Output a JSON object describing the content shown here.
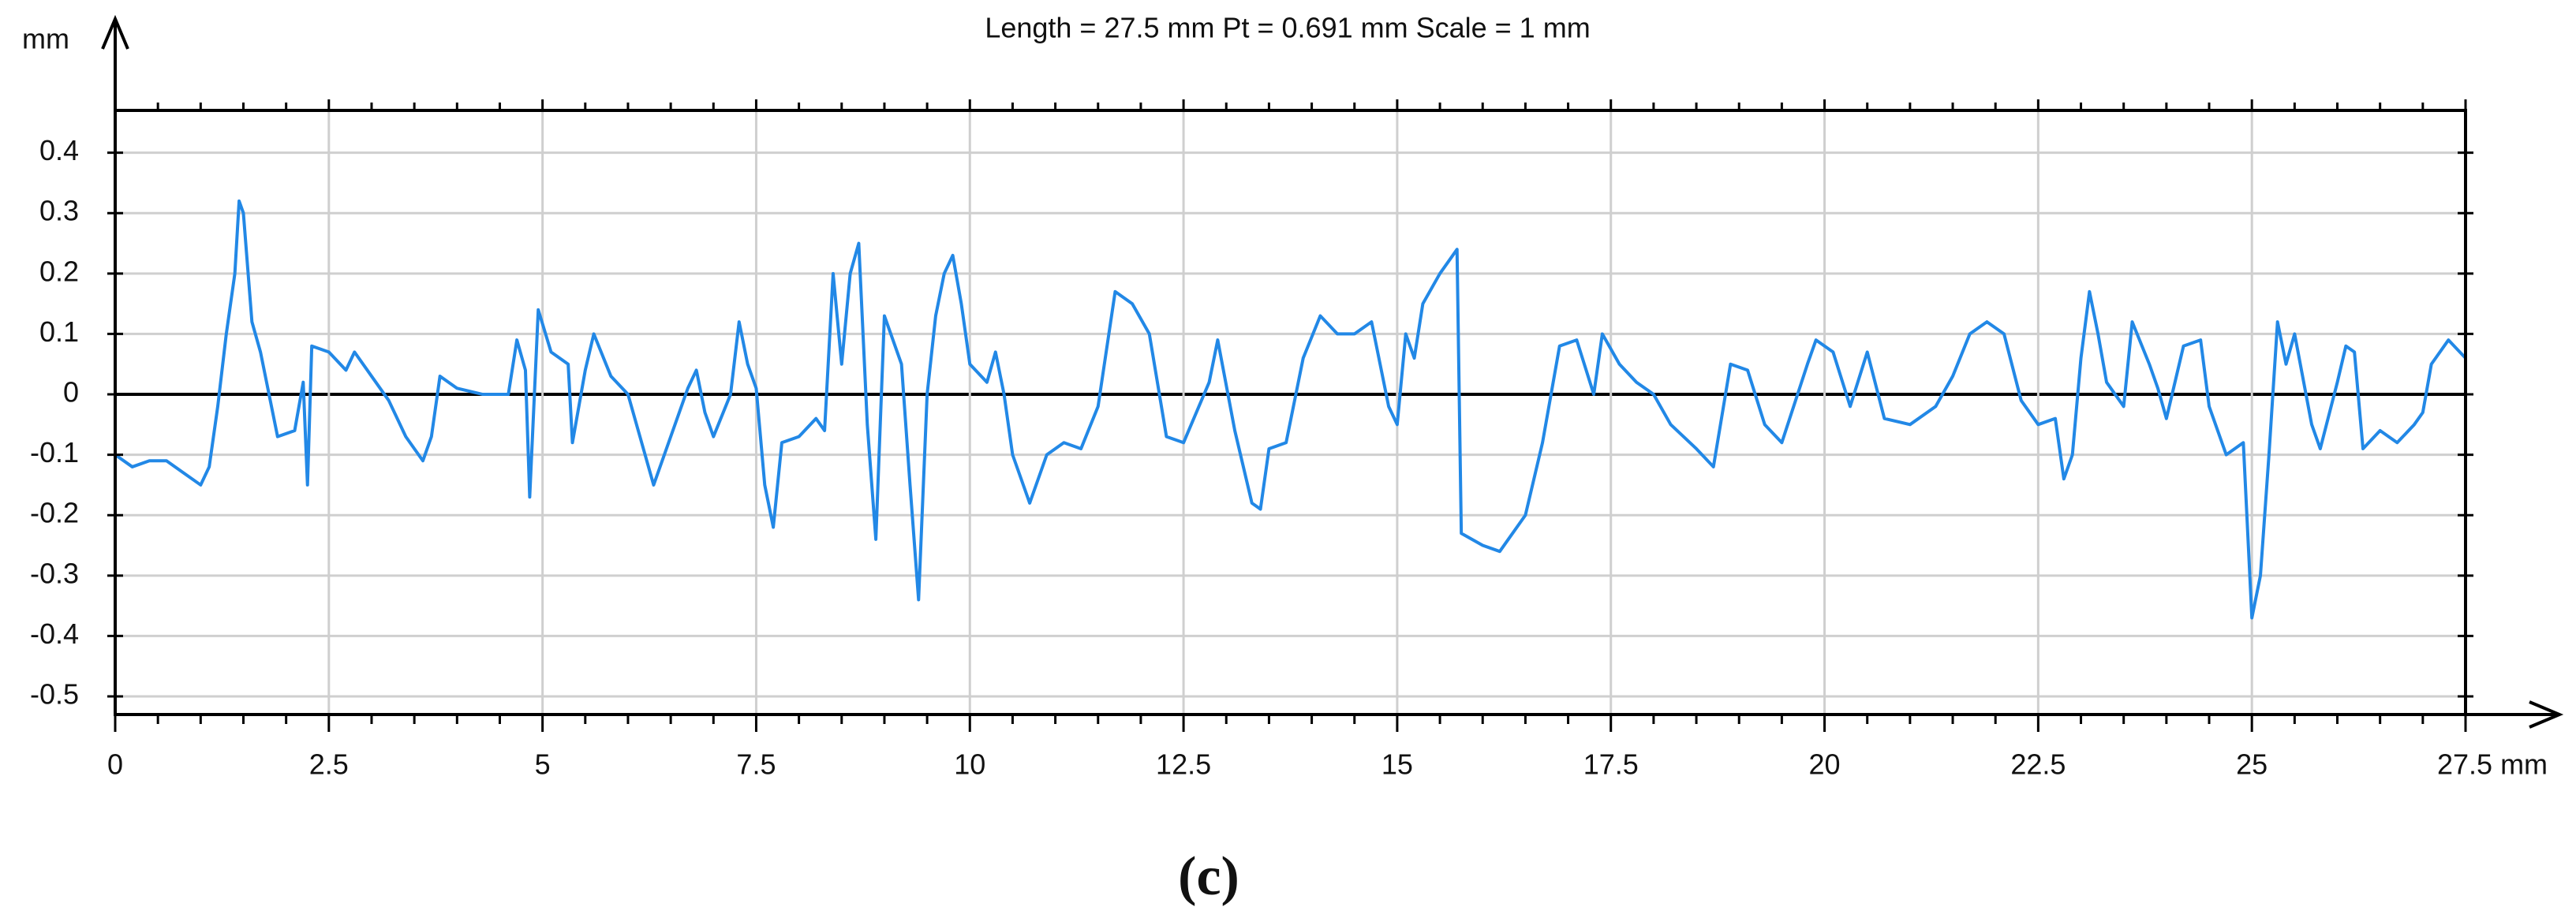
{
  "chart_data": {
    "type": "line",
    "title": "Length = 27.5 mm  Pt = 0.691 mm  Scale = 1 mm",
    "y_label": "mm",
    "caption": "(c)",
    "grid": true,
    "xlim": [
      0,
      27.5
    ],
    "ylim": [
      -0.53,
      0.47
    ],
    "xticks": [
      0,
      2.5,
      5,
      7.5,
      10,
      12.5,
      15,
      17.5,
      20,
      22.5,
      25,
      {
        "value": 27.5,
        "label": "27.5 mm"
      }
    ],
    "yticks": [
      0.4,
      0.3,
      0.2,
      0.1,
      0,
      -0.1,
      -0.2,
      -0.3,
      -0.4,
      -0.5
    ],
    "x": [
      0,
      0.2,
      0.4,
      0.6,
      0.8,
      1.0,
      1.1,
      1.2,
      1.3,
      1.4,
      1.45,
      1.5,
      1.6,
      1.7,
      1.8,
      1.9,
      2.1,
      2.2,
      2.25,
      2.3,
      2.5,
      2.7,
      2.8,
      3.0,
      3.2,
      3.4,
      3.6,
      3.7,
      3.8,
      4.0,
      4.3,
      4.6,
      4.7,
      4.8,
      4.85,
      4.95,
      5.1,
      5.3,
      5.35,
      5.5,
      5.6,
      5.8,
      6.0,
      6.2,
      6.3,
      6.5,
      6.7,
      6.8,
      6.9,
      7.0,
      7.2,
      7.3,
      7.4,
      7.5,
      7.6,
      7.7,
      7.8,
      8.0,
      8.2,
      8.3,
      8.4,
      8.5,
      8.6,
      8.7,
      8.8,
      8.9,
      9.0,
      9.2,
      9.3,
      9.4,
      9.5,
      9.6,
      9.7,
      9.8,
      9.9,
      10.0,
      10.2,
      10.3,
      10.4,
      10.5,
      10.7,
      10.9,
      11.1,
      11.3,
      11.5,
      11.7,
      11.9,
      12.1,
      12.3,
      12.5,
      12.8,
      12.9,
      13.1,
      13.3,
      13.4,
      13.5,
      13.7,
      13.9,
      14.1,
      14.3,
      14.5,
      14.7,
      14.8,
      14.9,
      15.0,
      15.1,
      15.2,
      15.3,
      15.5,
      15.7,
      15.75,
      16.0,
      16.2,
      16.5,
      16.7,
      16.9,
      17.1,
      17.3,
      17.4,
      17.6,
      17.8,
      18.0,
      18.2,
      18.5,
      18.7,
      18.9,
      19.1,
      19.3,
      19.5,
      19.8,
      19.9,
      20.1,
      20.3,
      20.5,
      20.7,
      21.0,
      21.3,
      21.5,
      21.7,
      21.9,
      22.1,
      22.3,
      22.5,
      22.7,
      22.8,
      22.9,
      23.0,
      23.1,
      23.2,
      23.3,
      23.5,
      23.6,
      23.8,
      23.9,
      24.0,
      24.2,
      24.4,
      24.5,
      24.7,
      24.9,
      25.0,
      25.1,
      25.2,
      25.3,
      25.4,
      25.5,
      25.7,
      25.8,
      26.0,
      26.1,
      26.2,
      26.3,
      26.5,
      26.7,
      26.9,
      27.0,
      27.1,
      27.3,
      27.5
    ],
    "series": [
      {
        "color": "#2288e6",
        "values": [
          -0.1,
          -0.12,
          -0.11,
          -0.11,
          -0.13,
          -0.15,
          -0.12,
          -0.02,
          0.1,
          0.2,
          0.32,
          0.3,
          0.12,
          0.07,
          0.0,
          -0.07,
          -0.06,
          0.02,
          -0.15,
          0.08,
          0.07,
          0.04,
          0.07,
          0.03,
          -0.01,
          -0.07,
          -0.11,
          -0.07,
          0.03,
          0.01,
          0.0,
          0.0,
          0.09,
          0.04,
          -0.17,
          0.14,
          0.07,
          0.05,
          -0.08,
          0.04,
          0.1,
          0.03,
          0.0,
          -0.1,
          -0.15,
          -0.07,
          0.01,
          0.04,
          -0.03,
          -0.07,
          0.0,
          0.12,
          0.05,
          0.01,
          -0.15,
          -0.22,
          -0.08,
          -0.07,
          -0.04,
          -0.06,
          0.2,
          0.05,
          0.2,
          0.25,
          -0.05,
          -0.24,
          0.13,
          0.05,
          -0.15,
          -0.34,
          0.0,
          0.13,
          0.2,
          0.23,
          0.15,
          0.05,
          0.02,
          0.07,
          0.0,
          -0.1,
          -0.18,
          -0.1,
          -0.08,
          -0.09,
          -0.02,
          0.17,
          0.15,
          0.1,
          -0.07,
          -0.08,
          0.02,
          0.09,
          -0.06,
          -0.18,
          -0.19,
          -0.09,
          -0.08,
          0.06,
          0.13,
          0.1,
          0.1,
          0.12,
          0.05,
          -0.02,
          -0.05,
          0.1,
          0.06,
          0.15,
          0.2,
          0.24,
          -0.23,
          -0.25,
          -0.26,
          -0.2,
          -0.08,
          0.08,
          0.09,
          0.0,
          0.1,
          0.05,
          0.02,
          0.0,
          -0.05,
          -0.09,
          -0.12,
          0.05,
          0.04,
          -0.05,
          -0.08,
          0.05,
          0.09,
          0.07,
          -0.02,
          0.07,
          -0.04,
          -0.05,
          -0.02,
          0.03,
          0.1,
          0.12,
          0.1,
          -0.01,
          -0.05,
          -0.04,
          -0.14,
          -0.1,
          0.06,
          0.17,
          0.1,
          0.02,
          -0.02,
          0.12,
          0.05,
          0.01,
          -0.04,
          0.08,
          0.09,
          -0.02,
          -0.1,
          -0.08,
          -0.37,
          -0.3,
          -0.1,
          0.12,
          0.05,
          0.1,
          -0.05,
          -0.09,
          0.02,
          0.08,
          0.07,
          -0.09,
          -0.06,
          -0.08,
          -0.05,
          -0.03,
          0.05,
          0.09,
          0.06
        ]
      }
    ]
  }
}
